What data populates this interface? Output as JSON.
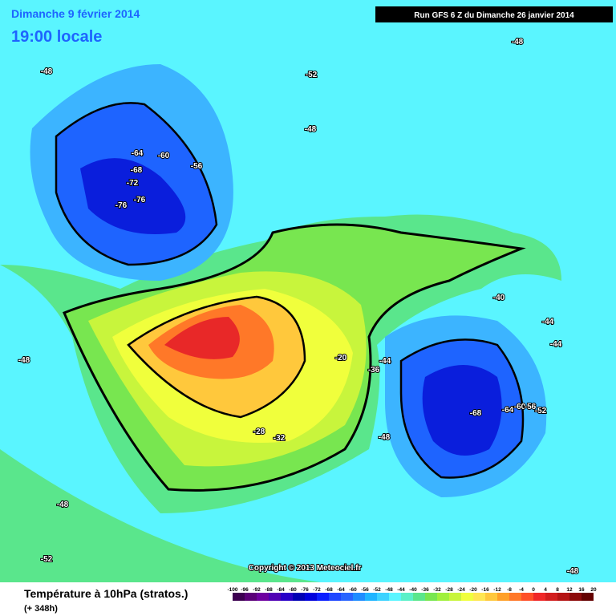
{
  "header": {
    "date": "Dimanche 9 février 2014",
    "time": "19:00 locale",
    "run": "Run GFS 6 Z du Dimanche 26 janvier 2014"
  },
  "footer": {
    "title": "Température à 10hPa (stratos.)",
    "lead": "(+ 348h)",
    "copyright": "Copyright © 2013 Meteociel.fr"
  },
  "contour_labels": [
    "-48",
    "-52",
    "-48",
    "-64",
    "-60",
    "-56",
    "-68",
    "-72",
    "-76",
    "-76",
    "-48",
    "-40",
    "-44",
    "-44",
    "-48",
    "-68",
    "-64",
    "-60",
    "-56",
    "-52",
    "-48",
    "-28",
    "-32",
    "-20",
    "-44",
    "-36",
    "-48",
    "-52",
    "-48"
  ],
  "legend": {
    "ticks": [
      -100,
      -96,
      -92,
      -88,
      -84,
      -80,
      -76,
      -72,
      -68,
      -64,
      -60,
      -56,
      -52,
      -48,
      -44,
      -40,
      -36,
      -32,
      -28,
      -24,
      -20,
      -16,
      -12,
      -8,
      -4,
      0,
      4,
      8,
      12,
      16,
      20
    ],
    "colors": [
      "#3c0050",
      "#5a0078",
      "#6e00a0",
      "#5000b4",
      "#2800c8",
      "#0000b4",
      "#0000dc",
      "#0a1eff",
      "#1e46ff",
      "#2864ff",
      "#1e8cff",
      "#1eb4ff",
      "#3cd2ff",
      "#5af5ff",
      "#5af0c8",
      "#5ae68c",
      "#78e650",
      "#a0f03c",
      "#c8f53c",
      "#f0ff3c",
      "#ffe650",
      "#ffc83c",
      "#ffa028",
      "#ff7828",
      "#ff5028",
      "#f02828",
      "#d21e1e",
      "#b41414",
      "#8c0a0a",
      "#640000"
    ]
  }
}
